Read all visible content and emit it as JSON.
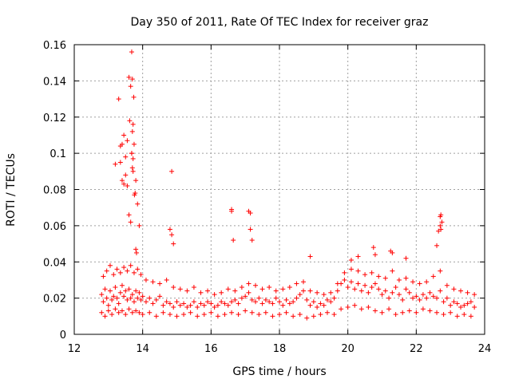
{
  "chart_data": {
    "type": "scatter",
    "title": "Day 350 of 2011, Rate Of TEC Index for receiver graz",
    "xlabel": "GPS time / hours",
    "ylabel": "ROTI / TECUs",
    "xlim": [
      12,
      24
    ],
    "ylim": [
      0,
      0.16
    ],
    "x_ticks": [
      "12",
      "14",
      "16",
      "18",
      "20",
      "22",
      "24"
    ],
    "y_ticks": [
      "0",
      "0.02",
      "0.04",
      "0.06",
      "0.08",
      "0.1",
      "0.12",
      "0.14",
      "0.16"
    ],
    "grid": true,
    "marker": "+",
    "color": "#ff0000",
    "series": [
      {
        "x": [
          12.8,
          12.85,
          12.9,
          12.95,
          13.0,
          13.05,
          13.1,
          13.15,
          13.2,
          13.25,
          13.3,
          13.35,
          13.4,
          13.45,
          13.5,
          13.55,
          13.6,
          13.65,
          13.7,
          13.75,
          13.8,
          13.85,
          13.9,
          13.95,
          14.0,
          14.1,
          14.2,
          14.3,
          14.4,
          14.5,
          14.6,
          14.7,
          14.8,
          14.9,
          15.0,
          15.1,
          15.2,
          15.3,
          15.4,
          15.5,
          15.6,
          15.7,
          15.8,
          15.9,
          16.0,
          16.1,
          16.2,
          16.3,
          16.4,
          16.5,
          16.6,
          16.7,
          16.8,
          16.9,
          17.0,
          17.1,
          17.2,
          17.3,
          17.4,
          17.5,
          17.6,
          17.7,
          17.8,
          17.9,
          18.0,
          18.1,
          18.2,
          18.3,
          18.4,
          18.5,
          18.6,
          18.7,
          18.8,
          18.9,
          19.0,
          19.1,
          19.2,
          19.3,
          19.4,
          19.5,
          19.6,
          19.7,
          19.8,
          19.9,
          20.0,
          20.1,
          20.2,
          20.3,
          20.4,
          20.5,
          20.6,
          20.7,
          20.8,
          20.9,
          21.0,
          21.1,
          21.2,
          21.3,
          21.4,
          21.5,
          21.6,
          21.7,
          21.8,
          21.9,
          22.0,
          22.1,
          22.2,
          22.3,
          22.4,
          22.5,
          22.6,
          22.7,
          22.8,
          22.9,
          23.0,
          23.1,
          23.2,
          23.3,
          23.4,
          23.5,
          23.6,
          23.7,
          12.8,
          12.9,
          13.0,
          13.1,
          13.2,
          13.3,
          13.4,
          13.5,
          13.6,
          13.7,
          13.8,
          13.9,
          14.0,
          14.2,
          14.4,
          14.6,
          14.8,
          15.0,
          15.2,
          15.4,
          15.6,
          15.8,
          16.0,
          16.2,
          16.4,
          16.6,
          16.8,
          17.0,
          17.2,
          17.4,
          17.6,
          17.8,
          18.0,
          18.2,
          18.4,
          18.6,
          18.8,
          19.0,
          19.2,
          19.4,
          19.6,
          19.8,
          20.0,
          20.2,
          20.4,
          20.6,
          20.8,
          21.0,
          21.2,
          21.4,
          21.6,
          21.8,
          22.0,
          22.2,
          22.4,
          22.6,
          22.8,
          23.0,
          23.2,
          23.4,
          23.6,
          12.85,
          12.95,
          13.05,
          13.15,
          13.25,
          13.35,
          13.45,
          13.55,
          13.65,
          13.75,
          13.85,
          13.95,
          14.1,
          14.3,
          14.5,
          14.7,
          14.9,
          15.1,
          15.3,
          15.5,
          15.7,
          15.9,
          16.1,
          16.3,
          16.5,
          16.7,
          16.9,
          17.1,
          17.3,
          17.5,
          17.7,
          17.9,
          18.1,
          18.3,
          18.5,
          18.7,
          18.9,
          19.1,
          19.3,
          19.5,
          19.7,
          19.9,
          20.1,
          20.3,
          20.5,
          20.7,
          20.9,
          21.1,
          21.3,
          21.5,
          21.7,
          21.9,
          22.1,
          22.3,
          22.5,
          22.7,
          22.9,
          23.1,
          23.3,
          23.5,
          23.7,
          13.2,
          13.3,
          13.35,
          13.4,
          13.45,
          13.5,
          13.55,
          13.6,
          13.62,
          13.65,
          13.68,
          13.7,
          13.72,
          13.75,
          13.78,
          13.8,
          13.85,
          13.9,
          14.8,
          14.85,
          14.9,
          16.6,
          16.65,
          17.1,
          17.15,
          17.2,
          18.9,
          20.1,
          20.3,
          20.8,
          21.25,
          21.3,
          21.7,
          22.6,
          22.65,
          22.7,
          22.72,
          22.75,
          13.68,
          13.7,
          13.72,
          13.74,
          13.76,
          13.7,
          13.68,
          13.72,
          13.4,
          13.5,
          13.55,
          13.35,
          13.45,
          13.6,
          13.65,
          13.8,
          13.82,
          14.85,
          16.6,
          17.15,
          20.75,
          22.7,
          22.72
        ],
        "y": [
          0.022,
          0.018,
          0.025,
          0.02,
          0.016,
          0.024,
          0.019,
          0.021,
          0.026,
          0.02,
          0.017,
          0.023,
          0.027,
          0.021,
          0.024,
          0.019,
          0.025,
          0.02,
          0.022,
          0.018,
          0.024,
          0.02,
          0.023,
          0.019,
          0.021,
          0.018,
          0.02,
          0.017,
          0.019,
          0.021,
          0.016,
          0.018,
          0.017,
          0.015,
          0.018,
          0.016,
          0.017,
          0.015,
          0.016,
          0.018,
          0.015,
          0.017,
          0.016,
          0.018,
          0.017,
          0.015,
          0.016,
          0.018,
          0.017,
          0.016,
          0.018,
          0.019,
          0.017,
          0.02,
          0.021,
          0.023,
          0.019,
          0.018,
          0.02,
          0.017,
          0.019,
          0.018,
          0.017,
          0.02,
          0.018,
          0.016,
          0.019,
          0.017,
          0.018,
          0.02,
          0.022,
          0.024,
          0.019,
          0.016,
          0.018,
          0.015,
          0.017,
          0.016,
          0.019,
          0.018,
          0.02,
          0.024,
          0.028,
          0.03,
          0.026,
          0.029,
          0.025,
          0.028,
          0.024,
          0.027,
          0.023,
          0.026,
          0.028,
          0.025,
          0.022,
          0.024,
          0.02,
          0.023,
          0.026,
          0.022,
          0.019,
          0.025,
          0.023,
          0.02,
          0.021,
          0.019,
          0.022,
          0.02,
          0.023,
          0.021,
          0.02,
          0.024,
          0.018,
          0.02,
          0.016,
          0.018,
          0.017,
          0.015,
          0.016,
          0.017,
          0.018,
          0.015,
          0.012,
          0.01,
          0.013,
          0.011,
          0.014,
          0.012,
          0.013,
          0.011,
          0.014,
          0.012,
          0.013,
          0.012,
          0.011,
          0.012,
          0.01,
          0.012,
          0.011,
          0.01,
          0.011,
          0.012,
          0.01,
          0.011,
          0.012,
          0.01,
          0.011,
          0.012,
          0.011,
          0.013,
          0.012,
          0.011,
          0.012,
          0.01,
          0.011,
          0.012,
          0.01,
          0.011,
          0.009,
          0.01,
          0.011,
          0.012,
          0.011,
          0.014,
          0.015,
          0.016,
          0.014,
          0.015,
          0.013,
          0.012,
          0.014,
          0.011,
          0.012,
          0.013,
          0.012,
          0.014,
          0.013,
          0.012,
          0.011,
          0.012,
          0.01,
          0.011,
          0.01,
          0.032,
          0.035,
          0.038,
          0.033,
          0.036,
          0.034,
          0.037,
          0.035,
          0.038,
          0.034,
          0.036,
          0.033,
          0.03,
          0.029,
          0.028,
          0.03,
          0.026,
          0.025,
          0.024,
          0.026,
          0.023,
          0.024,
          0.022,
          0.023,
          0.025,
          0.024,
          0.026,
          0.028,
          0.027,
          0.025,
          0.026,
          0.024,
          0.025,
          0.026,
          0.028,
          0.029,
          0.024,
          0.023,
          0.022,
          0.023,
          0.028,
          0.034,
          0.036,
          0.035,
          0.033,
          0.034,
          0.032,
          0.031,
          0.035,
          0.03,
          0.031,
          0.029,
          0.028,
          0.029,
          0.032,
          0.035,
          0.027,
          0.025,
          0.024,
          0.023,
          0.022,
          0.094,
          0.13,
          0.104,
          0.085,
          0.11,
          0.098,
          0.107,
          0.142,
          0.118,
          0.137,
          0.1,
          0.092,
          0.097,
          0.105,
          0.078,
          0.085,
          0.072,
          0.06,
          0.058,
          0.055,
          0.05,
          0.069,
          0.052,
          0.068,
          0.058,
          0.052,
          0.043,
          0.041,
          0.043,
          0.044,
          0.046,
          0.045,
          0.042,
          0.049,
          0.057,
          0.06,
          0.066,
          0.062,
          0.156,
          0.141,
          0.116,
          0.131,
          0.077,
          0.112,
          0.1,
          0.09,
          0.105,
          0.088,
          0.082,
          0.095,
          0.083,
          0.066,
          0.062,
          0.047,
          0.045,
          0.09,
          0.068,
          0.067,
          0.048,
          0.065,
          0.058
        ]
      }
    ]
  }
}
